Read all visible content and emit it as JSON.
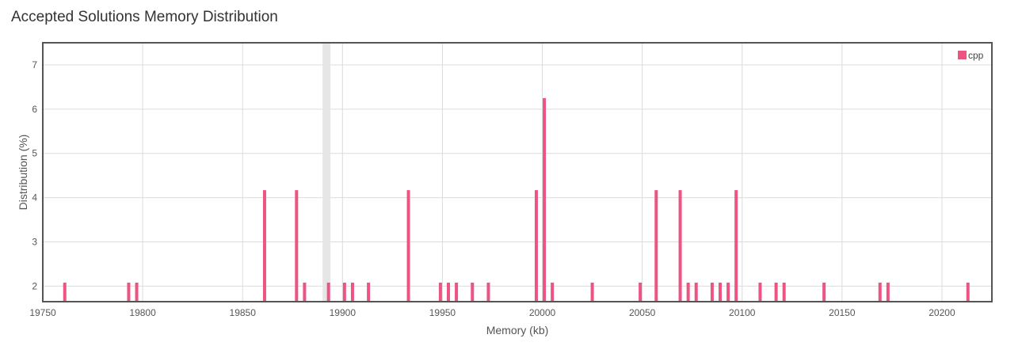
{
  "chart_data": {
    "type": "bar",
    "title": "Accepted Solutions Memory Distribution",
    "xlabel": "Memory (kb)",
    "ylabel": "Distribution (%)",
    "xlim": [
      19750,
      20225
    ],
    "ylim": [
      1.65,
      7.5
    ],
    "x_ticks": [
      19750,
      19800,
      19850,
      19900,
      19950,
      20000,
      20050,
      20100,
      20150,
      20200
    ],
    "y_ticks": [
      2,
      3,
      4,
      5,
      6,
      7
    ],
    "grid": true,
    "legend_position": "top-right",
    "highlight_x": 19892,
    "series": [
      {
        "name": "cpp",
        "color": "#ec5482",
        "points": [
          {
            "x": 19761,
            "y": 2.08
          },
          {
            "x": 19793,
            "y": 2.08
          },
          {
            "x": 19797,
            "y": 2.08
          },
          {
            "x": 19861,
            "y": 4.17
          },
          {
            "x": 19877,
            "y": 4.17
          },
          {
            "x": 19881,
            "y": 2.08
          },
          {
            "x": 19893,
            "y": 2.08
          },
          {
            "x": 19901,
            "y": 2.08
          },
          {
            "x": 19905,
            "y": 2.08
          },
          {
            "x": 19913,
            "y": 2.08
          },
          {
            "x": 19933,
            "y": 4.17
          },
          {
            "x": 19949,
            "y": 2.08
          },
          {
            "x": 19953,
            "y": 2.08
          },
          {
            "x": 19957,
            "y": 2.08
          },
          {
            "x": 19965,
            "y": 2.08
          },
          {
            "x": 19973,
            "y": 2.08
          },
          {
            "x": 19997,
            "y": 4.17
          },
          {
            "x": 20001,
            "y": 6.25
          },
          {
            "x": 20005,
            "y": 2.08
          },
          {
            "x": 20025,
            "y": 2.08
          },
          {
            "x": 20049,
            "y": 2.08
          },
          {
            "x": 20057,
            "y": 4.17
          },
          {
            "x": 20069,
            "y": 4.17
          },
          {
            "x": 20073,
            "y": 2.08
          },
          {
            "x": 20077,
            "y": 2.08
          },
          {
            "x": 20085,
            "y": 2.08
          },
          {
            "x": 20089,
            "y": 2.08
          },
          {
            "x": 20093,
            "y": 2.08
          },
          {
            "x": 20097,
            "y": 4.17
          },
          {
            "x": 20109,
            "y": 2.08
          },
          {
            "x": 20117,
            "y": 2.08
          },
          {
            "x": 20121,
            "y": 2.08
          },
          {
            "x": 20141,
            "y": 2.08
          },
          {
            "x": 20169,
            "y": 2.08
          },
          {
            "x": 20173,
            "y": 2.08
          },
          {
            "x": 20213,
            "y": 2.08
          }
        ]
      }
    ]
  }
}
